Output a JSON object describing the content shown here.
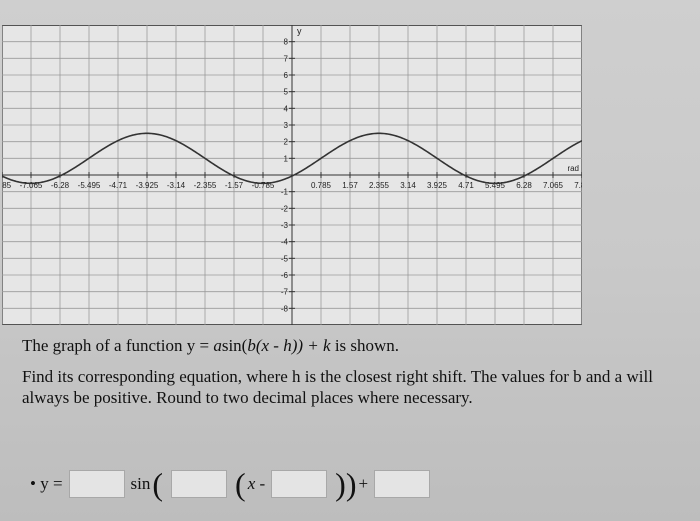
{
  "chart_data": {
    "type": "line",
    "function": "y = 1.5*sin(x - 0.785) + 1",
    "xlabel": "rad",
    "ylabel": "y",
    "xlim": [
      -7.85,
      7.85
    ],
    "ylim": [
      -9,
      9
    ],
    "x_ticks": [
      "-7.85",
      "-7.065",
      "-6.28",
      "-5.495",
      "-4.71",
      "-3.925",
      "-3.14",
      "-2.355",
      "-1.57",
      "-0.785",
      "0.785",
      "1.57",
      "2.355",
      "3.14",
      "3.925",
      "4.71",
      "5.495",
      "6.28",
      "7.065",
      "7.85"
    ],
    "x_tick_values": [
      -7.85,
      -7.065,
      -6.28,
      -5.495,
      -4.71,
      -3.925,
      -3.14,
      -2.355,
      -1.57,
      -0.785,
      0.785,
      1.57,
      2.355,
      3.14,
      3.925,
      4.71,
      5.495,
      6.28,
      7.065,
      7.85
    ],
    "y_ticks": [
      -8,
      -7,
      -6,
      -5,
      -4,
      -3,
      -2,
      -1,
      1,
      2,
      3,
      4,
      5,
      6,
      7,
      8
    ],
    "amplitude": 1.5,
    "b": 1,
    "h": 0.785,
    "k": 1,
    "grid": true,
    "curve_color": "#333333"
  },
  "question": {
    "line1_pre": "The graph of a function y = ",
    "line1_formula": "a",
    "line1_mid": "sin(",
    "line1_b": "b",
    "line1_x": "(x - h)) + k",
    "line1_post": " is shown.",
    "line2": "Find its corresponding equation, where h is the closest right shift. The values for b and a will always be positive. Round to two decimal places where necessary."
  },
  "answer": {
    "bullet": "•",
    "y_label": "y =",
    "sin_label": "sin",
    "x_label": "x -",
    "plus": "+",
    "fields": [
      "",
      "",
      "",
      ""
    ]
  }
}
